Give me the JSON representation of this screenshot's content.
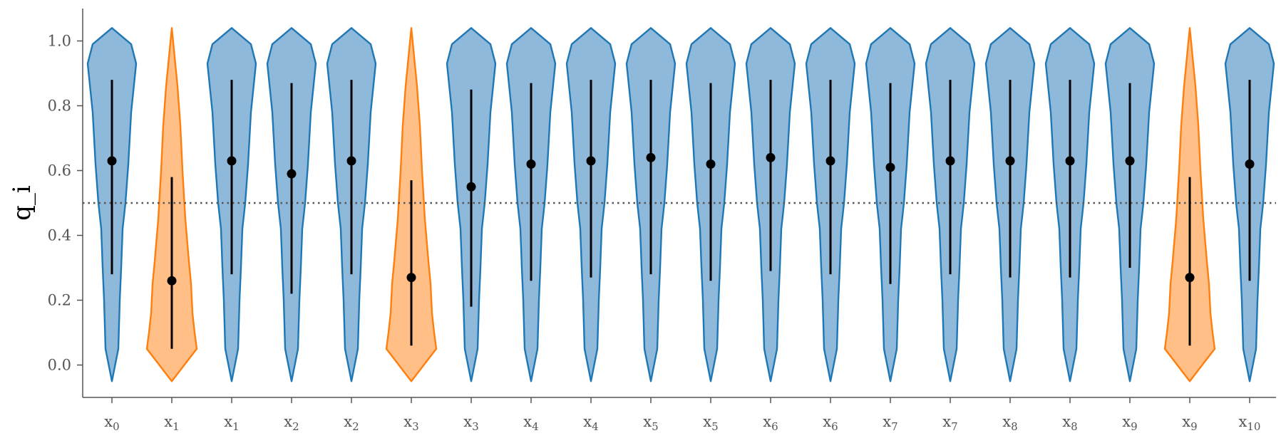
{
  "chart_data": {
    "type": "violin",
    "ylabel": "q_i",
    "ylim": [
      -0.1,
      1.1
    ],
    "yticks": [
      "0.0",
      "0.2",
      "0.4",
      "0.6",
      "0.8",
      "1.0"
    ],
    "reference_line": {
      "y": 0.5,
      "style": "dotted"
    },
    "grid": false,
    "colors": {
      "blue_fill": "#8fb9da",
      "blue_edge": "#1f77b4",
      "orange_fill": "#ffbf86",
      "orange_edge": "#ff7f0e"
    },
    "categories": [
      {
        "base": "x",
        "sub": "0"
      },
      {
        "base": "x",
        "sub": "1"
      },
      {
        "base": "x",
        "sub": "1"
      },
      {
        "base": "x",
        "sub": "2"
      },
      {
        "base": "x",
        "sub": "2"
      },
      {
        "base": "x",
        "sub": "3"
      },
      {
        "base": "x",
        "sub": "3"
      },
      {
        "base": "x",
        "sub": "4"
      },
      {
        "base": "x",
        "sub": "4"
      },
      {
        "base": "x",
        "sub": "5"
      },
      {
        "base": "x",
        "sub": "5"
      },
      {
        "base": "x",
        "sub": "6"
      },
      {
        "base": "x",
        "sub": "6"
      },
      {
        "base": "x",
        "sub": "7"
      },
      {
        "base": "x",
        "sub": "7"
      },
      {
        "base": "x",
        "sub": "8"
      },
      {
        "base": "x",
        "sub": "8"
      },
      {
        "base": "x",
        "sub": "9"
      },
      {
        "base": "x",
        "sub": "9"
      },
      {
        "base": "x",
        "sub": "10"
      }
    ],
    "violins": [
      {
        "color": "blue",
        "median": 0.63,
        "whisker_low": 0.28,
        "whisker_high": 0.88,
        "range": [
          -0.05,
          1.04
        ]
      },
      {
        "color": "orange",
        "median": 0.26,
        "whisker_low": 0.05,
        "whisker_high": 0.58,
        "range": [
          -0.05,
          1.04
        ]
      },
      {
        "color": "blue",
        "median": 0.63,
        "whisker_low": 0.28,
        "whisker_high": 0.88,
        "range": [
          -0.05,
          1.04
        ]
      },
      {
        "color": "blue",
        "median": 0.59,
        "whisker_low": 0.22,
        "whisker_high": 0.87,
        "range": [
          -0.05,
          1.04
        ]
      },
      {
        "color": "blue",
        "median": 0.63,
        "whisker_low": 0.28,
        "whisker_high": 0.88,
        "range": [
          -0.05,
          1.04
        ]
      },
      {
        "color": "orange",
        "median": 0.27,
        "whisker_low": 0.06,
        "whisker_high": 0.57,
        "range": [
          -0.05,
          1.04
        ]
      },
      {
        "color": "blue",
        "median": 0.55,
        "whisker_low": 0.18,
        "whisker_high": 0.85,
        "range": [
          -0.05,
          1.04
        ]
      },
      {
        "color": "blue",
        "median": 0.62,
        "whisker_low": 0.26,
        "whisker_high": 0.87,
        "range": [
          -0.05,
          1.04
        ]
      },
      {
        "color": "blue",
        "median": 0.63,
        "whisker_low": 0.27,
        "whisker_high": 0.88,
        "range": [
          -0.05,
          1.04
        ]
      },
      {
        "color": "blue",
        "median": 0.64,
        "whisker_low": 0.28,
        "whisker_high": 0.88,
        "range": [
          -0.05,
          1.04
        ]
      },
      {
        "color": "blue",
        "median": 0.62,
        "whisker_low": 0.26,
        "whisker_high": 0.87,
        "range": [
          -0.05,
          1.04
        ]
      },
      {
        "color": "blue",
        "median": 0.64,
        "whisker_low": 0.29,
        "whisker_high": 0.88,
        "range": [
          -0.05,
          1.04
        ]
      },
      {
        "color": "blue",
        "median": 0.63,
        "whisker_low": 0.28,
        "whisker_high": 0.88,
        "range": [
          -0.05,
          1.04
        ]
      },
      {
        "color": "blue",
        "median": 0.61,
        "whisker_low": 0.25,
        "whisker_high": 0.87,
        "range": [
          -0.05,
          1.04
        ]
      },
      {
        "color": "blue",
        "median": 0.63,
        "whisker_low": 0.28,
        "whisker_high": 0.88,
        "range": [
          -0.05,
          1.04
        ]
      },
      {
        "color": "blue",
        "median": 0.63,
        "whisker_low": 0.27,
        "whisker_high": 0.88,
        "range": [
          -0.05,
          1.04
        ]
      },
      {
        "color": "blue",
        "median": 0.63,
        "whisker_low": 0.27,
        "whisker_high": 0.88,
        "range": [
          -0.05,
          1.04
        ]
      },
      {
        "color": "blue",
        "median": 0.63,
        "whisker_low": 0.3,
        "whisker_high": 0.87,
        "range": [
          -0.05,
          1.04
        ]
      },
      {
        "color": "orange",
        "median": 0.27,
        "whisker_low": 0.06,
        "whisker_high": 0.58,
        "range": [
          -0.05,
          1.04
        ]
      },
      {
        "color": "blue",
        "median": 0.62,
        "whisker_low": 0.26,
        "whisker_high": 0.88,
        "range": [
          -0.05,
          1.04
        ]
      }
    ]
  }
}
